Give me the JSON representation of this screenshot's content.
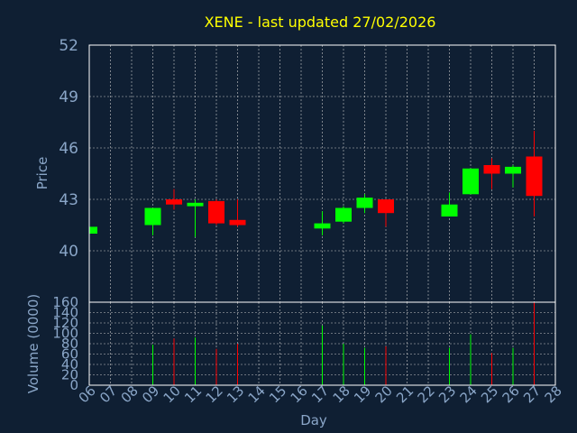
{
  "chart_data": [
    {
      "type": "candlestick",
      "title": "XENE - last updated 27/02/2026",
      "ylabel": "Price",
      "ylim": [
        37,
        52
      ],
      "yticks": [
        40,
        43,
        46,
        49,
        52
      ],
      "up_color": "#00ff00",
      "down_color": "#ff0000",
      "grid": true,
      "candles": [
        {
          "day": "06",
          "open": 41.0,
          "high": 41.4,
          "low": 41.0,
          "close": 41.4
        },
        {
          "day": "09",
          "open": 41.5,
          "high": 42.5,
          "low": 40.9,
          "close": 42.5
        },
        {
          "day": "10",
          "open": 43.0,
          "high": 43.6,
          "low": 42.4,
          "close": 42.7
        },
        {
          "day": "11",
          "open": 42.6,
          "high": 43.0,
          "low": 40.8,
          "close": 42.8
        },
        {
          "day": "12",
          "open": 42.9,
          "high": 43.0,
          "low": 41.5,
          "close": 41.6
        },
        {
          "day": "13",
          "open": 41.8,
          "high": 43.0,
          "low": 41.4,
          "close": 41.5
        },
        {
          "day": "17",
          "open": 41.3,
          "high": 42.3,
          "low": 40.9,
          "close": 41.6
        },
        {
          "day": "18",
          "open": 41.7,
          "high": 42.6,
          "low": 41.6,
          "close": 42.5
        },
        {
          "day": "19",
          "open": 42.5,
          "high": 43.3,
          "low": 42.2,
          "close": 43.1
        },
        {
          "day": "20",
          "open": 43.0,
          "high": 43.0,
          "low": 41.4,
          "close": 42.2
        },
        {
          "day": "23",
          "open": 42.0,
          "high": 43.4,
          "low": 42.0,
          "close": 42.7
        },
        {
          "day": "24",
          "open": 43.3,
          "high": 44.8,
          "low": 43.3,
          "close": 44.8
        },
        {
          "day": "25",
          "open": 45.0,
          "high": 45.4,
          "low": 43.6,
          "close": 44.5
        },
        {
          "day": "26",
          "open": 44.5,
          "high": 45.0,
          "low": 43.7,
          "close": 44.9
        },
        {
          "day": "27",
          "open": 45.5,
          "high": 47.0,
          "low": 42.0,
          "close": 43.2
        }
      ]
    },
    {
      "type": "bar",
      "ylabel": "Volume (0000)",
      "xlabel": "Day",
      "ylim": [
        0,
        160
      ],
      "yticks": [
        0,
        20,
        40,
        60,
        80,
        100,
        120,
        140,
        160
      ],
      "categories": [
        "06",
        "07",
        "08",
        "09",
        "10",
        "11",
        "12",
        "13",
        "14",
        "15",
        "16",
        "17",
        "18",
        "19",
        "20",
        "21",
        "22",
        "23",
        "24",
        "25",
        "26",
        "27",
        "28"
      ],
      "bars": [
        {
          "day": "09",
          "value": 78,
          "up": true
        },
        {
          "day": "10",
          "value": 90,
          "up": false
        },
        {
          "day": "11",
          "value": 92,
          "up": true
        },
        {
          "day": "12",
          "value": 70,
          "up": false
        },
        {
          "day": "13",
          "value": 80,
          "up": false
        },
        {
          "day": "17",
          "value": 115,
          "up": true
        },
        {
          "day": "18",
          "value": 80,
          "up": true
        },
        {
          "day": "19",
          "value": 72,
          "up": true
        },
        {
          "day": "20",
          "value": 75,
          "up": false
        },
        {
          "day": "23",
          "value": 72,
          "up": true
        },
        {
          "day": "24",
          "value": 98,
          "up": true
        },
        {
          "day": "25",
          "value": 62,
          "up": false
        },
        {
          "day": "26",
          "value": 72,
          "up": true
        },
        {
          "day": "27",
          "value": 160,
          "up": false
        }
      ]
    }
  ]
}
